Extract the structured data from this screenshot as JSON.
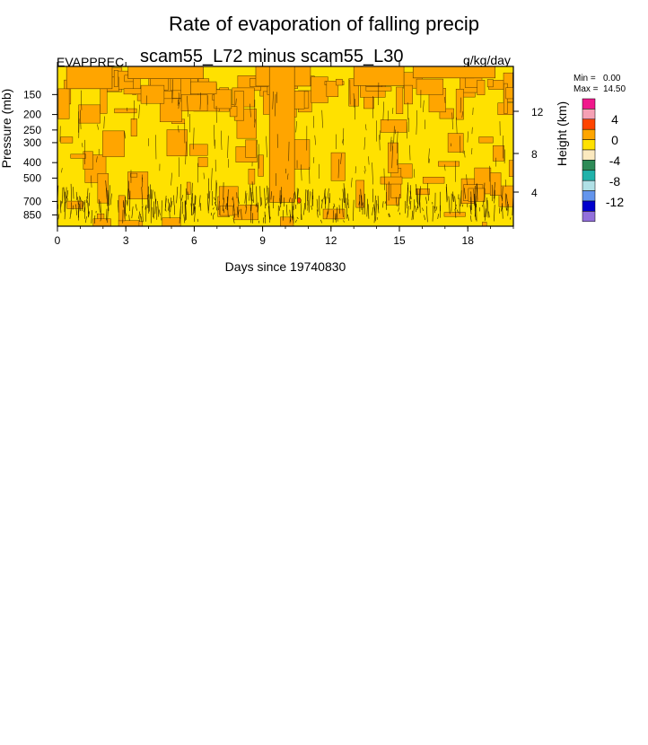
{
  "title": "Rate of evaporation of falling precip",
  "left_label": "EVAPPREC",
  "center_label": "scam55_L72 minus scam55_L30",
  "right_label": "g/kg/day",
  "stats": {
    "min_label": "Min =",
    "min_value": "0.00",
    "max_label": "Max =",
    "max_value": "14.50"
  },
  "chart_data": {
    "type": "heatmap",
    "xlabel": "Days since 19740830",
    "ylabel": "Pressure (mb)",
    "y2label": "Height (km)",
    "xlim": [
      0,
      20
    ],
    "x_ticks": [
      0,
      3,
      6,
      9,
      12,
      15,
      18
    ],
    "y_ticks": [
      150,
      200,
      250,
      300,
      400,
      500,
      700,
      850
    ],
    "y_scale": "log",
    "y_reversed": true,
    "y2_ticks": [
      12,
      8,
      4
    ],
    "legend": {
      "labels": [
        "4",
        "0",
        "-4",
        "-8",
        "-12"
      ],
      "colors": [
        "#f0188c",
        "#f5a0b4",
        "#ff4500",
        "#ffa500",
        "#ffe100",
        "#fbe9bf",
        "#2e8b57",
        "#20b2aa",
        "#b0e0e6",
        "#6495ed",
        "#0000cd",
        "#9370db"
      ]
    },
    "regions": {
      "dominant_positive": "#ffe100",
      "secondary": "#ffa500",
      "highlight": "#ff4500"
    }
  }
}
